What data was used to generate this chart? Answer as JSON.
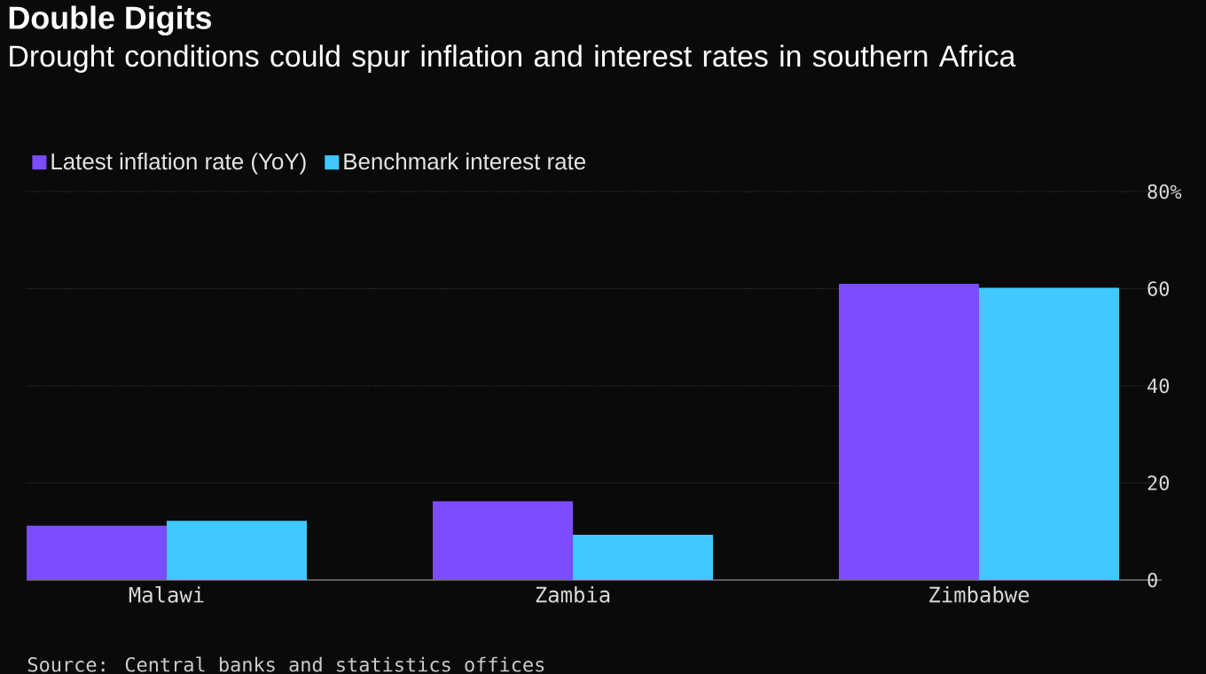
{
  "chart_data": {
    "type": "bar",
    "title": "Double Digits",
    "subtitle": "Drought conditions could spur inflation and interest rates in southern Africa",
    "categories": [
      "Malawi",
      "Zambia",
      "Zimbabwe"
    ],
    "series": [
      {
        "name": "Latest inflation rate (YoY)",
        "color": "#7b4dff",
        "values": [
          11.2,
          16.2,
          61.0
        ]
      },
      {
        "name": "Benchmark interest rate",
        "color": "#40c8ff",
        "values": [
          12.2,
          9.3,
          60.2
        ]
      }
    ],
    "ylim": [
      0,
      80
    ],
    "yticks": [
      0,
      20,
      40,
      60,
      {
        "value": 80,
        "label": "80%"
      }
    ],
    "grid": "y",
    "legend": "top left",
    "annotations": [
      "Source: Central banks and statistics offices"
    ]
  }
}
